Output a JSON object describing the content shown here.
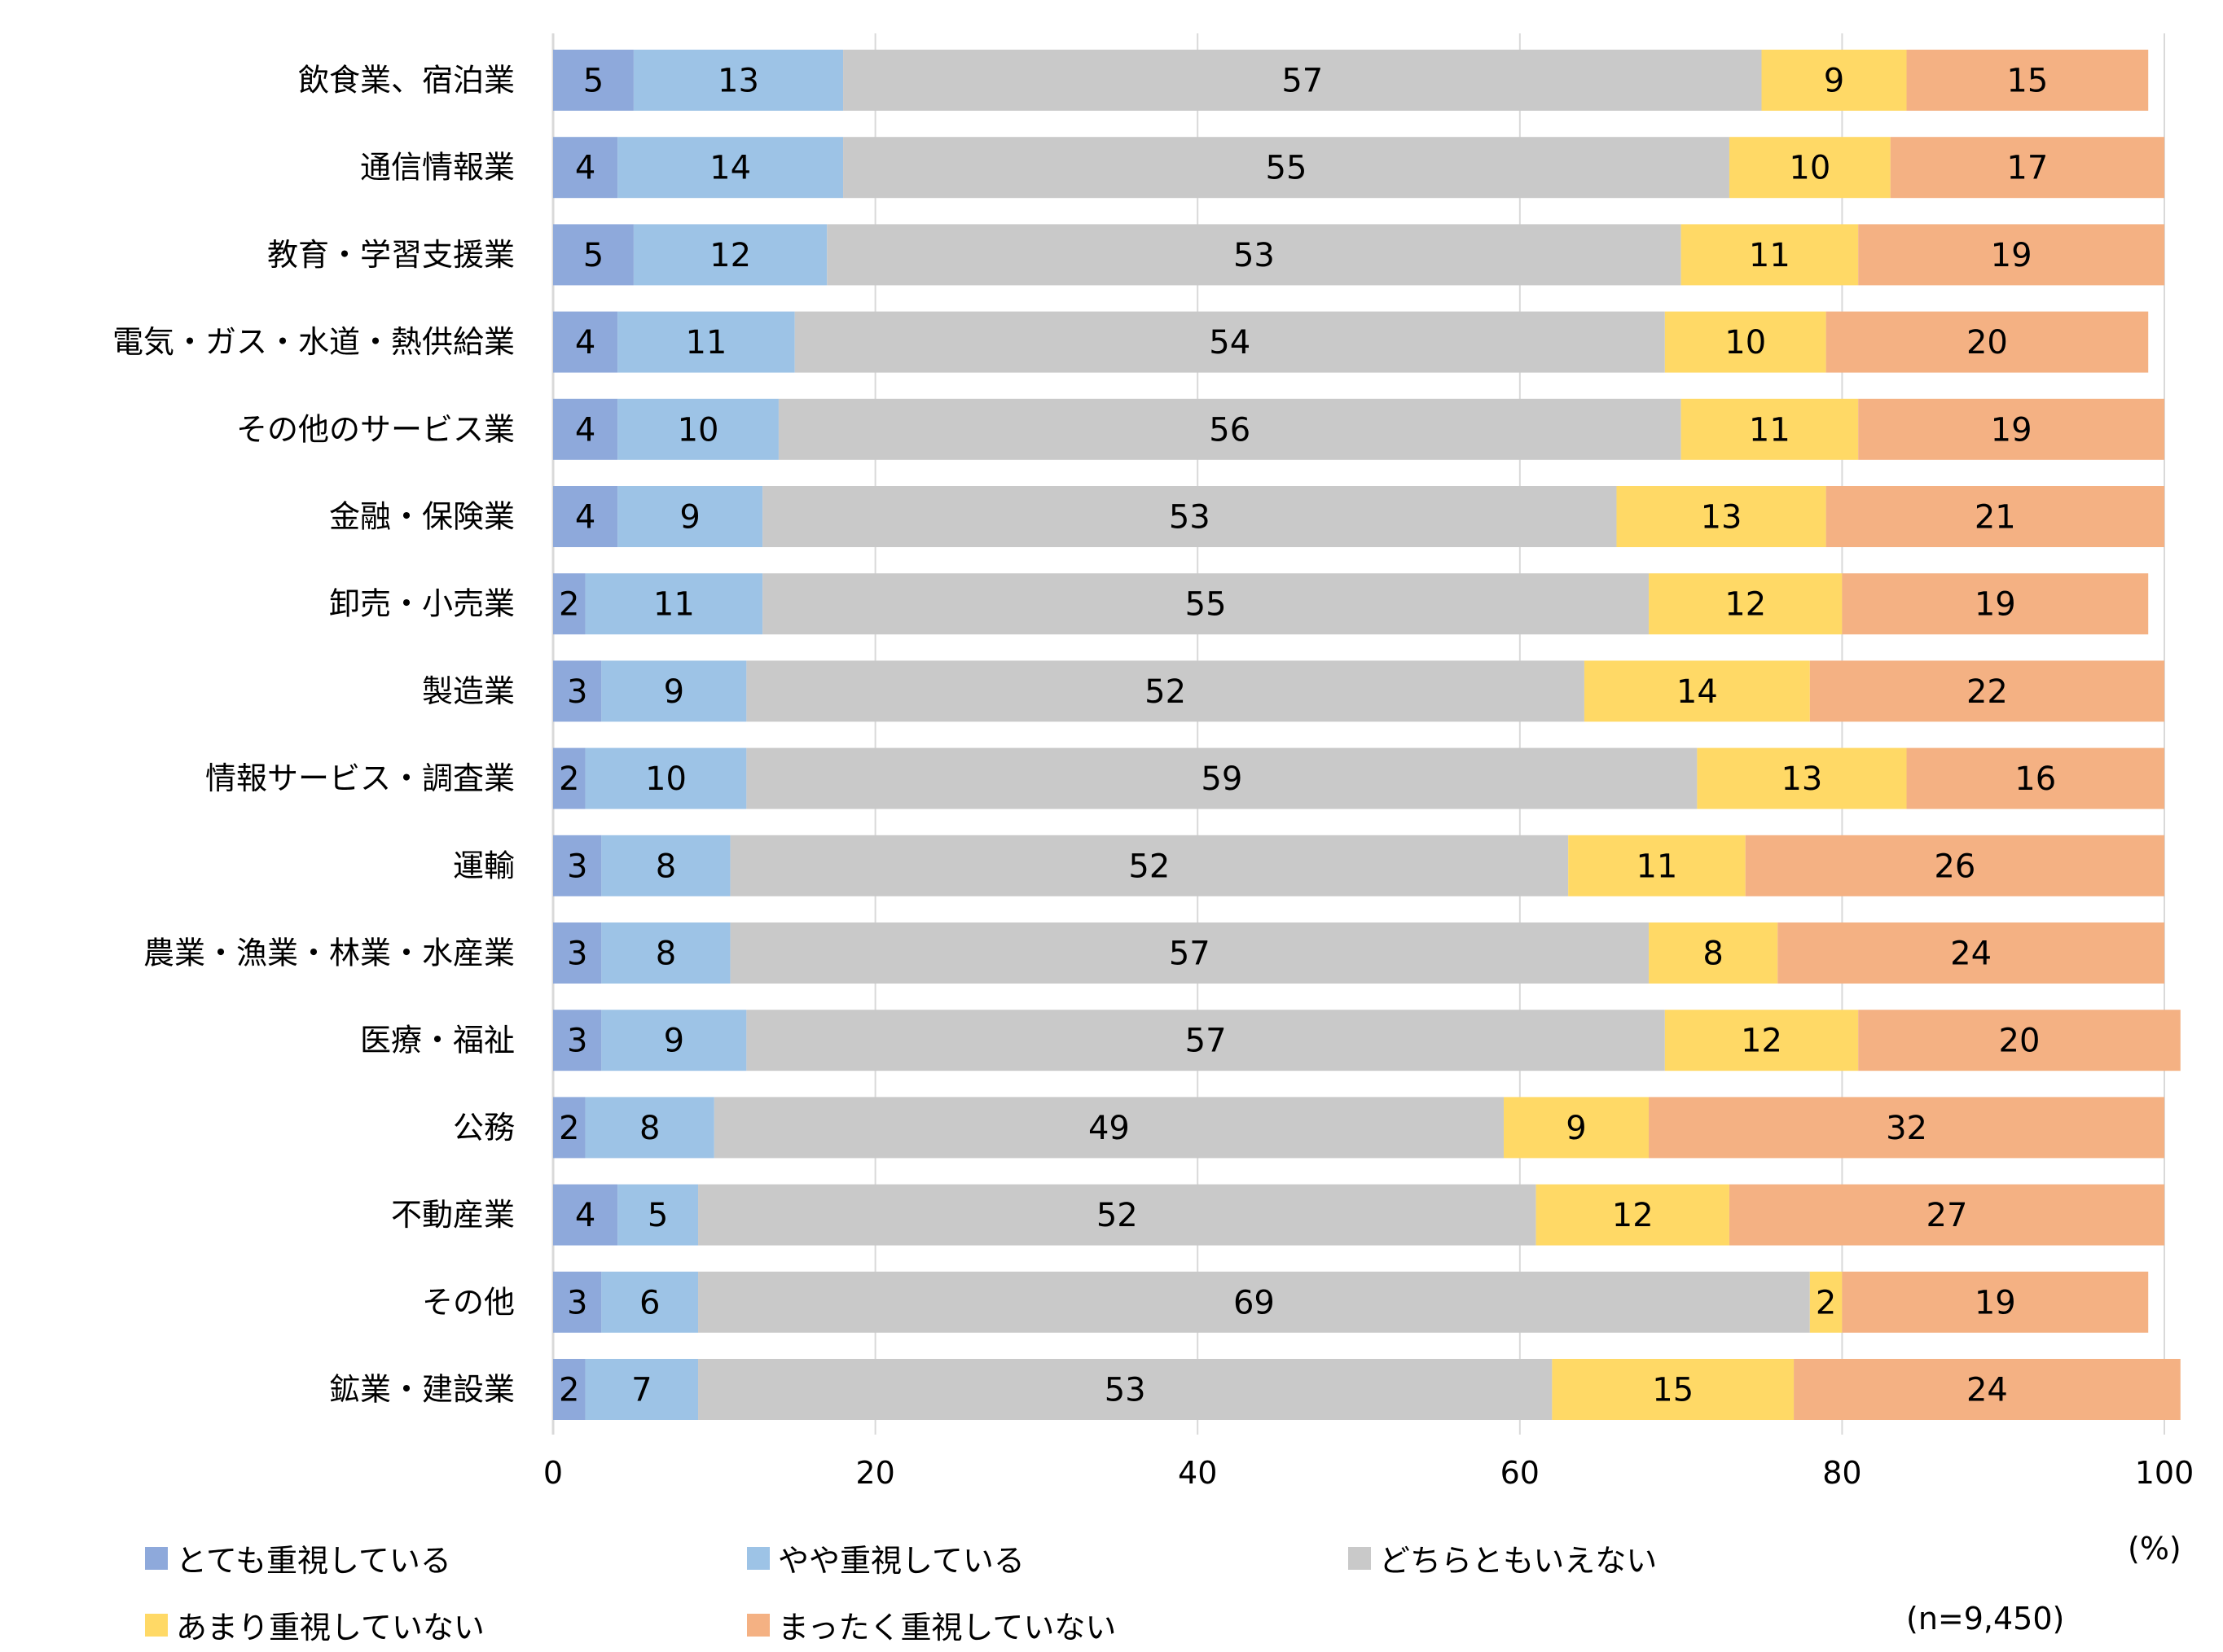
{
  "chart_data": {
    "type": "bar",
    "orientation": "horizontal",
    "stacked": true,
    "title": "",
    "xlabel": "",
    "ylabel": "",
    "xlim": [
      0,
      100
    ],
    "xticks": [
      0,
      20,
      40,
      60,
      80,
      100
    ],
    "grid": true,
    "unit_label": "(%)",
    "sample_note": "(n=9,450)",
    "legend_position": "bottom",
    "categories": [
      "飲食業、宿泊業",
      "通信情報業",
      "教育・学習支援業",
      "電気・ガス・水道・熱供給業",
      "その他のサービス業",
      "金融・保険業",
      "卸売・小売業",
      "製造業",
      "情報サービス・調査業",
      "運輸",
      "農業・漁業・林業・水産業",
      "医療・福祉",
      "公務",
      "不動産業",
      "その他",
      "鉱業・建設業"
    ],
    "series": [
      {
        "name": "とても重視している",
        "color": "#8EA9DB",
        "values": [
          5,
          4,
          5,
          4,
          4,
          4,
          2,
          3,
          2,
          3,
          3,
          3,
          2,
          4,
          3,
          2
        ]
      },
      {
        "name": "やや重視している",
        "color": "#9DC3E6",
        "values": [
          13,
          14,
          12,
          11,
          10,
          9,
          11,
          9,
          10,
          8,
          8,
          9,
          8,
          5,
          6,
          7
        ]
      },
      {
        "name": "どちらともいえない",
        "color": "#C9C9C9",
        "values": [
          57,
          55,
          53,
          54,
          56,
          53,
          55,
          52,
          59,
          52,
          57,
          57,
          49,
          52,
          69,
          53
        ]
      },
      {
        "name": "あまり重視していない",
        "color": "#FFD966",
        "values": [
          9,
          10,
          11,
          10,
          11,
          13,
          12,
          14,
          13,
          11,
          8,
          12,
          9,
          12,
          2,
          15
        ]
      },
      {
        "name": "まったく重視していない",
        "color": "#F4B183",
        "values": [
          15,
          17,
          19,
          20,
          19,
          21,
          19,
          22,
          16,
          26,
          24,
          20,
          32,
          27,
          19,
          24
        ]
      }
    ]
  }
}
